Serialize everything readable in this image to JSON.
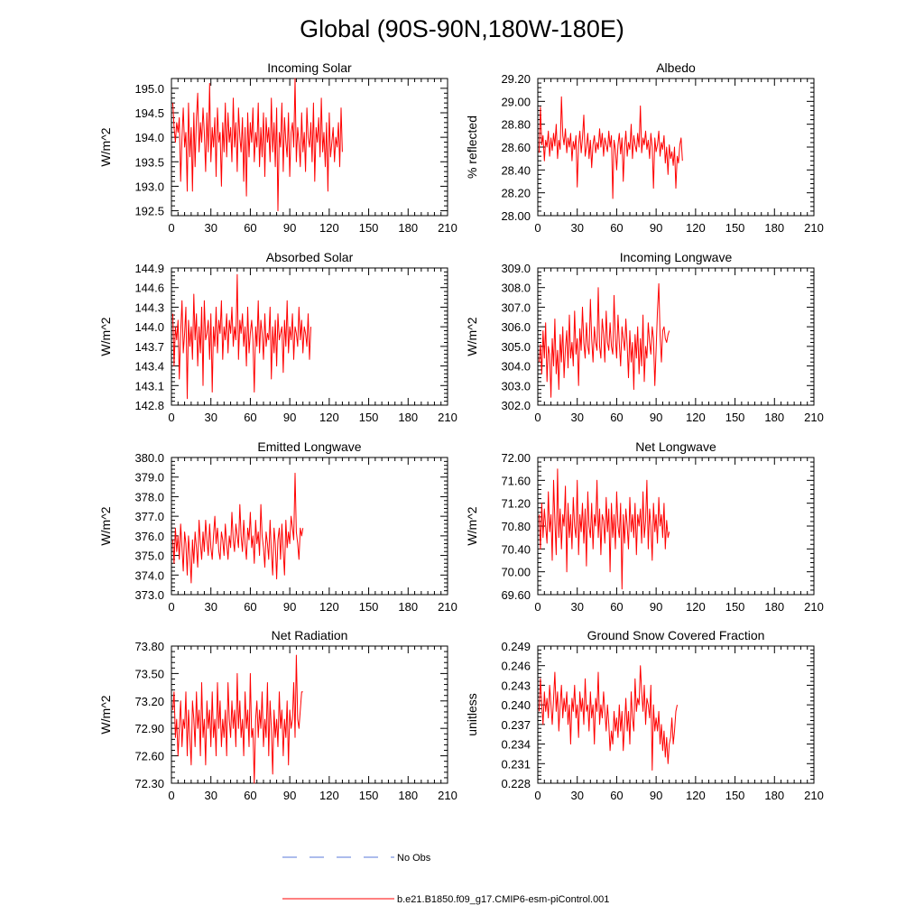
{
  "title": "Global (90S-90N,180W-180E)",
  "legend": {
    "obs_label": "No Obs",
    "obs_color": "#5a78d8",
    "model_label": "b.e21.B1850.f09_g17.CMIP6-esm-piControl.001",
    "model_color": "#ff0000"
  },
  "chart_data": [
    {
      "type": "line",
      "title": "Incoming Solar",
      "ylabel": "W/m^2",
      "xlim": [
        0,
        210
      ],
      "xticks": [
        0,
        30,
        60,
        90,
        120,
        150,
        180,
        210
      ],
      "ylim": [
        192.4,
        195.2
      ],
      "yticks": [
        "192.5",
        "193.0",
        "193.5",
        "194.0",
        "194.5",
        "195.0"
      ],
      "x_start": 1,
      "values": [
        194.7,
        194.2,
        193.9,
        194.3,
        194.1,
        194.4,
        193.1,
        194.0,
        194.6,
        193.8,
        194.1,
        192.9,
        194.7,
        193.6,
        194.2,
        192.9,
        194.5,
        193.4,
        194.4,
        194.9,
        193.7,
        194.3,
        193.9,
        194.6,
        194.1,
        193.3,
        194.5,
        193.7,
        195.1,
        193.5,
        194.2,
        193.8,
        194.4,
        193.2,
        194.6,
        193.9,
        194.1,
        193.0,
        194.3,
        193.7,
        194.7,
        193.6,
        194.5,
        193.9,
        194.2,
        193.5,
        194.8,
        193.8,
        194.3,
        193.3,
        194.6,
        194.0,
        193.7,
        194.4,
        193.1,
        194.2,
        192.8,
        194.5,
        193.6,
        194.3,
        193.9,
        194.6,
        193.5,
        194.1,
        193.8,
        194.7,
        193.4,
        194.2,
        193.6,
        194.5,
        193.2,
        194.4,
        193.9,
        194.2,
        193.5,
        194.8,
        193.7,
        194.3,
        193.4,
        194.6,
        192.5,
        194.1,
        193.8,
        194.7,
        193.3,
        194.4,
        193.9,
        193.6,
        194.5,
        193.2,
        194.1,
        194.3,
        193.8,
        195.2,
        193.5,
        194.2,
        193.9,
        193.4,
        194.5,
        193.7,
        194.1,
        193.3,
        194.6,
        194.0,
        193.8,
        194.3,
        193.5,
        194.7,
        193.1,
        194.2,
        193.9,
        194.4,
        193.6,
        194.8,
        193.7,
        194.1,
        193.4,
        194.3,
        192.9,
        194.5,
        193.6,
        193.9,
        194.2,
        193.5,
        194.0,
        193.8,
        194.3,
        193.4,
        194.6,
        193.7
      ]
    },
    {
      "type": "line",
      "title": "Albedo",
      "ylabel": "% reflected",
      "xlim": [
        0,
        210
      ],
      "xticks": [
        0,
        30,
        60,
        90,
        120,
        150,
        180,
        210
      ],
      "ylim": [
        28.0,
        29.2
      ],
      "yticks": [
        "28.00",
        "28.20",
        "28.40",
        "28.60",
        "28.80",
        "29.00",
        "29.20"
      ],
      "x_start": 1,
      "values": [
        28.55,
        28.95,
        28.62,
        28.7,
        28.48,
        28.66,
        28.6,
        28.74,
        28.52,
        28.68,
        28.57,
        28.72,
        28.61,
        28.8,
        28.5,
        28.66,
        28.58,
        29.04,
        28.7,
        28.62,
        28.76,
        28.55,
        28.68,
        28.6,
        28.72,
        28.48,
        28.65,
        28.58,
        28.7,
        28.25,
        28.62,
        28.74,
        28.55,
        28.68,
        28.88,
        28.52,
        28.6,
        28.72,
        28.5,
        28.66,
        28.42,
        28.62,
        28.7,
        28.55,
        28.64,
        28.58,
        28.76,
        28.6,
        28.72,
        28.52,
        28.68,
        28.62,
        28.56,
        28.74,
        28.6,
        28.7,
        28.15,
        28.66,
        28.58,
        28.4,
        28.62,
        28.72,
        28.54,
        28.68,
        28.3,
        28.6,
        28.74,
        28.52,
        28.64,
        28.58,
        28.8,
        28.5,
        28.7,
        28.62,
        28.56,
        28.72,
        28.6,
        28.96,
        28.55,
        28.68,
        28.62,
        28.74,
        28.58,
        28.66,
        28.5,
        28.72,
        28.6,
        28.24,
        28.68,
        28.56,
        28.62,
        28.74,
        28.52,
        28.64,
        28.58,
        28.7,
        28.46,
        28.6,
        28.36,
        28.62,
        28.5,
        28.56,
        28.44,
        28.6,
        28.24,
        28.52,
        28.46,
        28.62,
        28.68,
        28.48
      ]
    },
    {
      "type": "line",
      "title": "Absorbed Solar",
      "ylabel": "W/m^2",
      "xlim": [
        0,
        210
      ],
      "xticks": [
        0,
        30,
        60,
        90,
        120,
        150,
        180,
        210
      ],
      "ylim": [
        142.8,
        144.9
      ],
      "yticks": [
        "142.8",
        "143.1",
        "143.4",
        "143.7",
        "144.0",
        "144.3",
        "144.6",
        "144.9"
      ],
      "x_start": 1,
      "values": [
        144.2,
        143.4,
        144.0,
        143.8,
        144.1,
        143.2,
        143.9,
        144.4,
        143.6,
        143.9,
        144.3,
        142.9,
        144.1,
        143.7,
        144.0,
        143.5,
        144.5,
        143.8,
        144.2,
        143.4,
        144.0,
        143.6,
        144.3,
        143.1,
        144.4,
        143.8,
        143.9,
        144.1,
        143.5,
        144.2,
        143.0,
        144.0,
        143.7,
        144.3,
        143.6,
        144.1,
        143.9,
        144.4,
        143.5,
        144.0,
        143.8,
        144.2,
        143.6,
        144.1,
        143.9,
        144.3,
        143.7,
        144.0,
        143.8,
        144.8,
        143.5,
        144.1,
        143.9,
        144.2,
        143.7,
        144.0,
        143.4,
        144.3,
        143.6,
        143.9,
        144.1,
        143.8,
        143.0,
        144.0,
        143.7,
        144.4,
        143.6,
        144.1,
        143.9,
        143.5,
        144.2,
        143.7,
        143.9,
        143.8,
        144.3,
        143.2,
        144.0,
        143.6,
        144.1,
        143.4,
        144.2,
        143.8,
        143.9,
        144.0,
        143.3,
        144.1,
        143.7,
        144.4,
        143.6,
        144.0,
        143.8,
        144.2,
        143.5,
        144.0,
        143.9,
        143.7,
        144.3,
        143.8,
        144.1,
        143.6,
        144.0,
        143.9,
        143.7,
        144.2,
        143.5,
        144.0
      ]
    },
    {
      "type": "line",
      "title": "Incoming Longwave",
      "ylabel": "W/m^2",
      "xlim": [
        0,
        210
      ],
      "xticks": [
        0,
        30,
        60,
        90,
        120,
        150,
        180,
        210
      ],
      "ylim": [
        302.0,
        309.0
      ],
      "yticks": [
        "302.0",
        "303.0",
        "304.0",
        "305.0",
        "306.0",
        "307.0",
        "308.0",
        "309.0"
      ],
      "x_start": 1,
      "values": [
        304.2,
        305.1,
        303.6,
        305.8,
        304.4,
        306.2,
        303.2,
        305.0,
        304.6,
        302.4,
        305.4,
        304.0,
        306.4,
        303.6,
        304.8,
        302.8,
        305.6,
        304.2,
        306.0,
        303.4,
        304.9,
        305.8,
        303.9,
        306.6,
        304.4,
        305.2,
        304.0,
        306.8,
        304.6,
        305.4,
        303.0,
        305.9,
        304.8,
        307.0,
        305.2,
        304.4,
        306.2,
        305.0,
        304.6,
        307.4,
        305.4,
        304.2,
        306.0,
        305.2,
        304.8,
        308.0,
        305.0,
        304.4,
        306.4,
        305.6,
        304.2,
        306.8,
        305.2,
        304.8,
        306.2,
        305.0,
        304.6,
        307.6,
        305.4,
        304.4,
        306.6,
        305.2,
        304.0,
        306.0,
        305.4,
        304.8,
        306.4,
        305.0,
        303.4,
        305.8,
        304.2,
        305.2,
        302.8,
        305.6,
        304.4,
        306.0,
        303.6,
        305.4,
        304.0,
        306.6,
        303.2,
        305.0,
        304.4,
        306.2,
        305.2,
        304.6,
        306.0,
        305.4,
        303.0,
        304.8,
        306.8,
        308.2,
        305.6,
        304.2,
        305.8,
        306.0,
        305.4,
        305.2,
        305.6,
        305.8
      ]
    },
    {
      "type": "line",
      "title": "Emitted Longwave",
      "ylabel": "W/m^2",
      "xlim": [
        0,
        210
      ],
      "xticks": [
        0,
        30,
        60,
        90,
        120,
        150,
        180,
        210
      ],
      "ylim": [
        373.0,
        380.0
      ],
      "yticks": [
        "373.0",
        "374.0",
        "375.0",
        "376.0",
        "377.0",
        "378.0",
        "379.0",
        "380.0"
      ],
      "x_start": 1,
      "values": [
        375.8,
        374.6,
        376.4,
        375.2,
        376.0,
        374.8,
        376.6,
        375.4,
        374.2,
        376.2,
        375.6,
        374.0,
        376.0,
        375.0,
        373.6,
        375.8,
        374.6,
        376.2,
        375.4,
        374.4,
        376.8,
        375.6,
        374.8,
        376.2,
        375.2,
        376.8,
        375.8,
        375.0,
        376.6,
        375.4,
        374.8,
        376.0,
        377.0,
        375.6,
        376.4,
        375.2,
        374.8,
        376.2,
        375.8,
        375.0,
        376.6,
        375.6,
        374.8,
        376.0,
        375.4,
        377.2,
        375.8,
        375.2,
        376.6,
        376.0,
        375.4,
        377.6,
        376.0,
        375.2,
        376.8,
        375.6,
        374.8,
        376.4,
        375.8,
        377.2,
        375.4,
        376.0,
        374.6,
        376.8,
        375.6,
        376.2,
        375.0,
        377.6,
        376.0,
        375.4,
        374.4,
        376.2,
        375.6,
        374.8,
        376.8,
        375.2,
        374.0,
        376.4,
        375.6,
        373.8,
        375.8,
        376.4,
        374.8,
        376.6,
        375.2,
        374.0,
        376.8,
        375.4,
        376.2,
        375.6,
        377.0,
        376.4,
        375.8,
        379.2,
        376.2,
        375.6,
        374.8,
        376.4,
        376.0,
        376.4
      ]
    },
    {
      "type": "line",
      "title": "Net Longwave",
      "ylabel": "W/m^2",
      "xlim": [
        0,
        210
      ],
      "xticks": [
        0,
        30,
        60,
        90,
        120,
        150,
        180,
        210
      ],
      "ylim": [
        69.6,
        72.0
      ],
      "yticks": [
        "69.60",
        "70.00",
        "70.40",
        "70.80",
        "71.20",
        "71.60",
        "72.00"
      ],
      "x_start": 1,
      "values": [
        71.0,
        70.4,
        71.2,
        70.6,
        71.1,
        70.8,
        70.5,
        71.4,
        70.7,
        71.0,
        70.2,
        71.6,
        70.9,
        70.3,
        71.8,
        70.6,
        71.1,
        70.4,
        71.0,
        70.8,
        71.5,
        70.0,
        71.2,
        70.6,
        71.0,
        70.4,
        71.3,
        70.8,
        70.6,
        71.6,
        70.3,
        71.0,
        70.7,
        71.2,
        70.5,
        71.1,
        70.1,
        71.4,
        70.8,
        70.6,
        71.2,
        70.4,
        71.0,
        70.8,
        71.6,
        70.6,
        71.1,
        70.3,
        71.0,
        70.9,
        70.5,
        71.3,
        70.7,
        71.1,
        70.0,
        71.2,
        70.6,
        71.0,
        70.4,
        71.4,
        70.8,
        70.6,
        71.2,
        69.7,
        71.0,
        70.5,
        71.1,
        70.8,
        70.4,
        71.3,
        70.7,
        71.0,
        70.6,
        71.2,
        70.3,
        71.0,
        70.8,
        71.1,
        70.5,
        71.4,
        70.6,
        70.9,
        71.6,
        70.4,
        71.1,
        70.8,
        70.2,
        71.2,
        70.7,
        71.0,
        70.5,
        71.3,
        70.8,
        71.0,
        70.6,
        71.2,
        70.4,
        70.9,
        70.6,
        70.7
      ]
    },
    {
      "type": "line",
      "title": "Net Radiation",
      "ylabel": "W/m^2",
      "xlim": [
        0,
        210
      ],
      "xticks": [
        0,
        30,
        60,
        90,
        120,
        150,
        180,
        210
      ],
      "ylim": [
        72.3,
        73.8
      ],
      "yticks": [
        "72.30",
        "72.60",
        "72.90",
        "73.20",
        "73.50",
        "73.80"
      ],
      "x_start": 1,
      "values": [
        73.1,
        73.3,
        72.8,
        73.0,
        72.6,
        72.9,
        73.2,
        72.7,
        73.0,
        72.9,
        73.3,
        72.6,
        73.1,
        72.8,
        72.5,
        73.2,
        73.0,
        72.7,
        73.3,
        72.9,
        73.1,
        72.6,
        73.4,
        72.8,
        73.0,
        72.5,
        73.2,
        72.9,
        73.1,
        72.7,
        73.3,
        72.8,
        73.0,
        72.6,
        73.4,
        72.9,
        73.2,
        72.7,
        73.0,
        72.8,
        73.1,
        72.6,
        73.4,
        73.0,
        72.8,
        73.2,
        72.9,
        73.1,
        72.7,
        73.5,
        72.9,
        73.2,
        72.8,
        73.0,
        72.6,
        73.3,
        72.9,
        73.1,
        72.7,
        73.5,
        72.8,
        72.9,
        72.3,
        73.0,
        73.2,
        72.8,
        73.1,
        72.9,
        73.3,
        72.7,
        73.0,
        72.8,
        73.4,
        72.6,
        73.2,
        72.9,
        72.4,
        73.1,
        72.8,
        73.0,
        72.7,
        73.3,
        72.9,
        73.1,
        72.6,
        73.0,
        72.8,
        73.2,
        72.5,
        73.1,
        72.9,
        73.0,
        73.4,
        72.8,
        73.7,
        73.0,
        72.9,
        73.1,
        73.3,
        73.3
      ]
    },
    {
      "type": "line",
      "title": "Ground Snow Covered Fraction",
      "ylabel": "unitless",
      "xlim": [
        0,
        210
      ],
      "xticks": [
        0,
        30,
        60,
        90,
        120,
        150,
        180,
        210
      ],
      "ylim": [
        0.228,
        0.249
      ],
      "yticks": [
        "0.228",
        "0.231",
        "0.234",
        "0.237",
        "0.240",
        "0.243",
        "0.246",
        "0.249"
      ],
      "x_start": 1,
      "values": [
        0.239,
        0.244,
        0.24,
        0.237,
        0.242,
        0.239,
        0.241,
        0.238,
        0.243,
        0.24,
        0.237,
        0.241,
        0.245,
        0.239,
        0.242,
        0.236,
        0.24,
        0.243,
        0.238,
        0.241,
        0.239,
        0.242,
        0.237,
        0.24,
        0.234,
        0.241,
        0.239,
        0.243,
        0.238,
        0.24,
        0.235,
        0.242,
        0.239,
        0.241,
        0.237,
        0.244,
        0.239,
        0.24,
        0.236,
        0.242,
        0.238,
        0.24,
        0.234,
        0.241,
        0.239,
        0.245,
        0.237,
        0.24,
        0.238,
        0.242,
        0.239,
        0.236,
        0.24,
        0.237,
        0.233,
        0.236,
        0.234,
        0.239,
        0.236,
        0.238,
        0.235,
        0.24,
        0.236,
        0.239,
        0.233,
        0.237,
        0.241,
        0.236,
        0.239,
        0.234,
        0.242,
        0.238,
        0.236,
        0.244,
        0.239,
        0.241,
        0.24,
        0.246,
        0.242,
        0.239,
        0.243,
        0.237,
        0.241,
        0.24,
        0.238,
        0.243,
        0.23,
        0.24,
        0.236,
        0.238,
        0.236,
        0.239,
        0.234,
        0.237,
        0.233,
        0.236,
        0.232,
        0.235,
        0.231,
        0.234,
        0.235,
        0.238,
        0.234,
        0.236,
        0.239,
        0.24
      ]
    }
  ]
}
